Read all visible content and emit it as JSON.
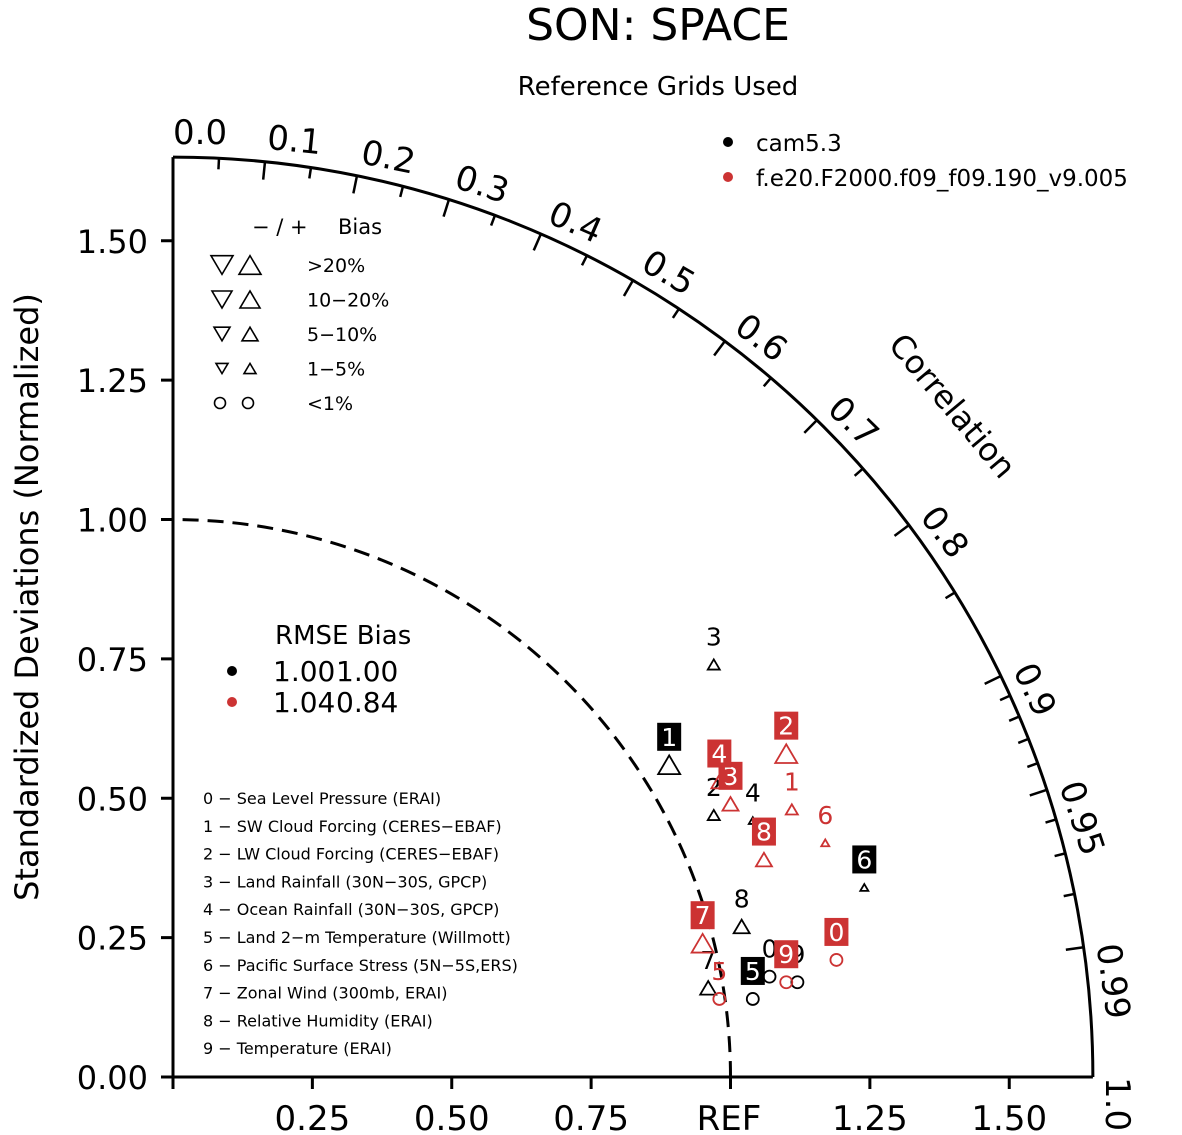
{
  "chart_data": {
    "type": "taylor",
    "title": "SON: SPACE",
    "subtitle": "Reference Grids Used",
    "ylabel": "Standardized Deviations (Normalized)",
    "arc_label": "Correlation",
    "ref_label": "REF",
    "std_range": [
      0,
      1.65
    ],
    "y_ticks": [
      "0.00",
      "0.25",
      "0.50",
      "0.75",
      "1.00",
      "1.25",
      "1.50"
    ],
    "x_ticks": [
      "0.25",
      "0.50",
      "0.75",
      "1.25",
      "1.50"
    ],
    "correlation_labels": [
      "0.0",
      "0.1",
      "0.2",
      "0.3",
      "0.4",
      "0.5",
      "0.6",
      "0.7",
      "0.8",
      "0.9",
      "0.95",
      "0.99",
      "1.0"
    ],
    "models": [
      {
        "name": "cam5.3",
        "color": "#000000"
      },
      {
        "name": "f.e20.F2000.f09_f09.190_v9.005",
        "color": "#cc3333"
      }
    ],
    "bias_legend": {
      "header_sign": "− / +",
      "header_label": "Bias",
      "rows": [
        ">20%",
        "10−20%",
        "5−10%",
        "1−5%",
        "<1%"
      ]
    },
    "rmse_table": {
      "header": "RMSE Bias",
      "rows": [
        {
          "rmse": "1.00",
          "bias": "1.00"
        },
        {
          "rmse": "1.04",
          "bias": "0.84"
        }
      ]
    },
    "variables": [
      "0 − Sea Level Pressure (ERAI)",
      "1 − SW Cloud Forcing (CERES−EBAF)",
      "2 − LW Cloud Forcing (CERES−EBAF)",
      "3 − Land Rainfall (30N−30S, GPCP)",
      "4 − Ocean Rainfall (30N−30S, GPCP)",
      "5 − Land 2−m Temperature (Willmott)",
      "6 − Pacific Surface Stress (5N−5S,ERS)",
      "7 − Zonal Wind (300mb, ERAI)",
      "8 − Relative Humidity (ERAI)",
      "9 − Temperature (ERAI)"
    ],
    "points": [
      {
        "model": 0,
        "label": "0",
        "x": 1.07,
        "y": 0.18,
        "marker": "circle",
        "level": 0,
        "boxed": false
      },
      {
        "model": 0,
        "label": "1",
        "x": 0.89,
        "y": 0.56,
        "marker": "triangle",
        "level": 1,
        "boxed": true
      },
      {
        "model": 0,
        "label": "2",
        "x": 0.97,
        "y": 0.47,
        "marker": "triangle",
        "level": 3,
        "boxed": false
      },
      {
        "model": 0,
        "label": "3",
        "x": 0.97,
        "y": 0.74,
        "marker": "triangle",
        "level": 3,
        "boxed": false
      },
      {
        "model": 0,
        "label": "4",
        "x": 1.04,
        "y": 0.46,
        "marker": "triangle",
        "level": 4,
        "boxed": false
      },
      {
        "model": 0,
        "label": "5",
        "x": 1.04,
        "y": 0.14,
        "marker": "circle",
        "level": 0,
        "boxed": true
      },
      {
        "model": 0,
        "label": "6",
        "x": 1.24,
        "y": 0.34,
        "marker": "triangle",
        "level": 4,
        "boxed": true
      },
      {
        "model": 0,
        "label": "7",
        "x": 0.96,
        "y": 0.16,
        "marker": "triangle",
        "level": 2,
        "boxed": false
      },
      {
        "model": 0,
        "label": "8",
        "x": 1.02,
        "y": 0.27,
        "marker": "triangle",
        "level": 2,
        "boxed": false
      },
      {
        "model": 0,
        "label": "9",
        "x": 1.12,
        "y": 0.17,
        "marker": "circle",
        "level": 0,
        "boxed": false
      },
      {
        "model": 1,
        "label": "0",
        "x": 1.19,
        "y": 0.21,
        "marker": "circle",
        "level": 0,
        "boxed": true
      },
      {
        "model": 1,
        "label": "1",
        "x": 1.11,
        "y": 0.48,
        "marker": "triangle",
        "level": 3,
        "boxed": false
      },
      {
        "model": 1,
        "label": "2",
        "x": 1.1,
        "y": 0.58,
        "marker": "triangle",
        "level": 1,
        "boxed": true
      },
      {
        "model": 1,
        "label": "3",
        "x": 1.0,
        "y": 0.49,
        "marker": "triangle",
        "level": 2,
        "boxed": true
      },
      {
        "model": 1,
        "label": "4",
        "x": 0.98,
        "y": 0.53,
        "marker": "triangle",
        "level": 2,
        "boxed": true
      },
      {
        "model": 1,
        "label": "5",
        "x": 0.98,
        "y": 0.14,
        "marker": "circle",
        "level": 0,
        "boxed": false
      },
      {
        "model": 1,
        "label": "6",
        "x": 1.17,
        "y": 0.42,
        "marker": "triangle",
        "level": 4,
        "boxed": false
      },
      {
        "model": 1,
        "label": "7",
        "x": 0.95,
        "y": 0.24,
        "marker": "triangle",
        "level": 1,
        "boxed": true
      },
      {
        "model": 1,
        "label": "8",
        "x": 1.06,
        "y": 0.39,
        "marker": "triangle",
        "level": 2,
        "boxed": true
      },
      {
        "model": 1,
        "label": "9",
        "x": 1.1,
        "y": 0.17,
        "marker": "circle",
        "level": 0,
        "boxed": true
      }
    ]
  }
}
